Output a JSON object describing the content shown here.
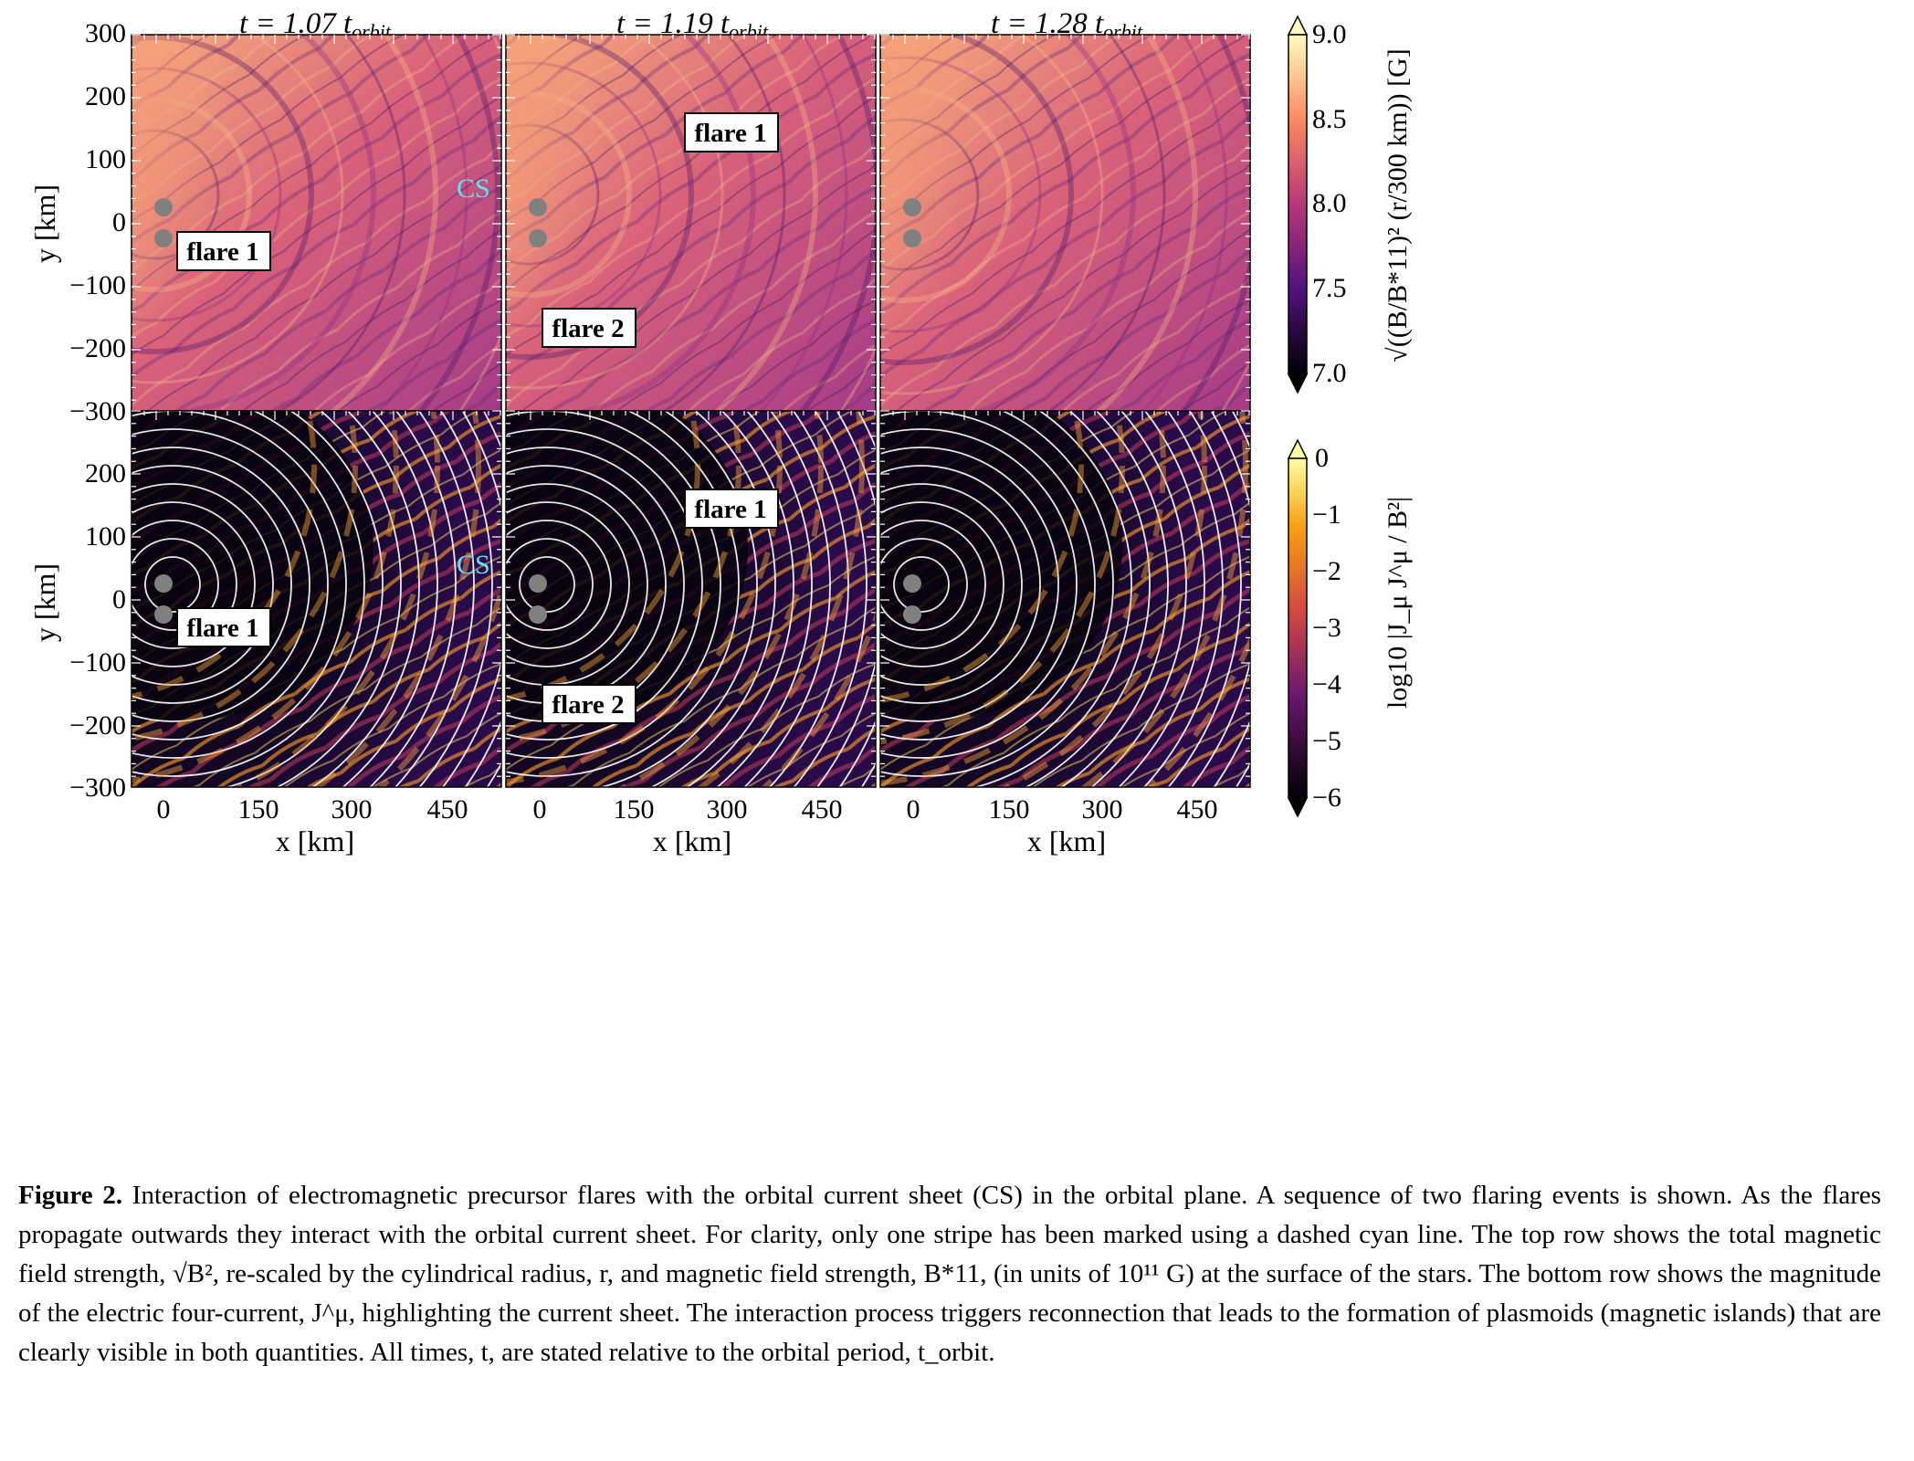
{
  "figure": {
    "columns": [
      {
        "time_label": "t = 1.07 t",
        "time_sub": "orbit"
      },
      {
        "time_label": "t = 1.19 t",
        "time_sub": "orbit"
      },
      {
        "time_label": "t = 1.28 t",
        "time_sub": "orbit"
      }
    ],
    "x_axis": {
      "label": "x [km]",
      "ticks": [
        "0",
        "150",
        "300",
        "450"
      ]
    },
    "y_axis": {
      "label": "y [km]",
      "ticks": [
        "300",
        "200",
        "100",
        "0",
        "−100",
        "−200",
        "−300"
      ]
    },
    "cs_label": "CS",
    "annotations": {
      "top": [
        [
          "flare 1"
        ],
        [
          "flare 1",
          "flare 2"
        ],
        []
      ],
      "bottom": [
        [
          "flare 1"
        ],
        [
          "flare 1",
          "flare 2"
        ],
        []
      ]
    },
    "colorbar_top": {
      "label": "√((B/B*11)² (r/300 km)) [G]",
      "ticks": [
        "9.0",
        "8.5",
        "8.0",
        "7.5",
        "7.0"
      ],
      "range": [
        7.0,
        9.0
      ],
      "colormap": "magma"
    },
    "colorbar_bottom": {
      "label": "log10 |J_μ J^μ / B²|",
      "ticks": [
        "0",
        "−1",
        "−2",
        "−3",
        "−4",
        "−5",
        "−6"
      ],
      "range": [
        -6,
        0
      ],
      "colormap": "inferno"
    },
    "colors": {
      "cs_line": "#5fe3ee",
      "star": "#808080",
      "streamline": "#ffffff"
    }
  },
  "caption": {
    "label": "Figure 2.",
    "text": "Interaction of electromagnetic precursor flares with the orbital current sheet (CS) in the orbital plane. A sequence of two flaring events is shown. As the flares propagate outwards they interact with the orbital current sheet. For clarity, only one stripe has been marked using a dashed cyan line. The top row shows the total magnetic field strength, √B², re-scaled by the cylindrical radius, r, and magnetic field strength, B*11, (in units of 10¹¹ G) at the surface of the stars. The bottom row shows the magnitude of the electric four-current, J^μ, highlighting the current sheet. The interaction process triggers reconnection that leads to the formation of plasmoids (magnetic islands) that are clearly visible in both quantities. All times, t, are stated relative to the orbital period, t_orbit."
  }
}
